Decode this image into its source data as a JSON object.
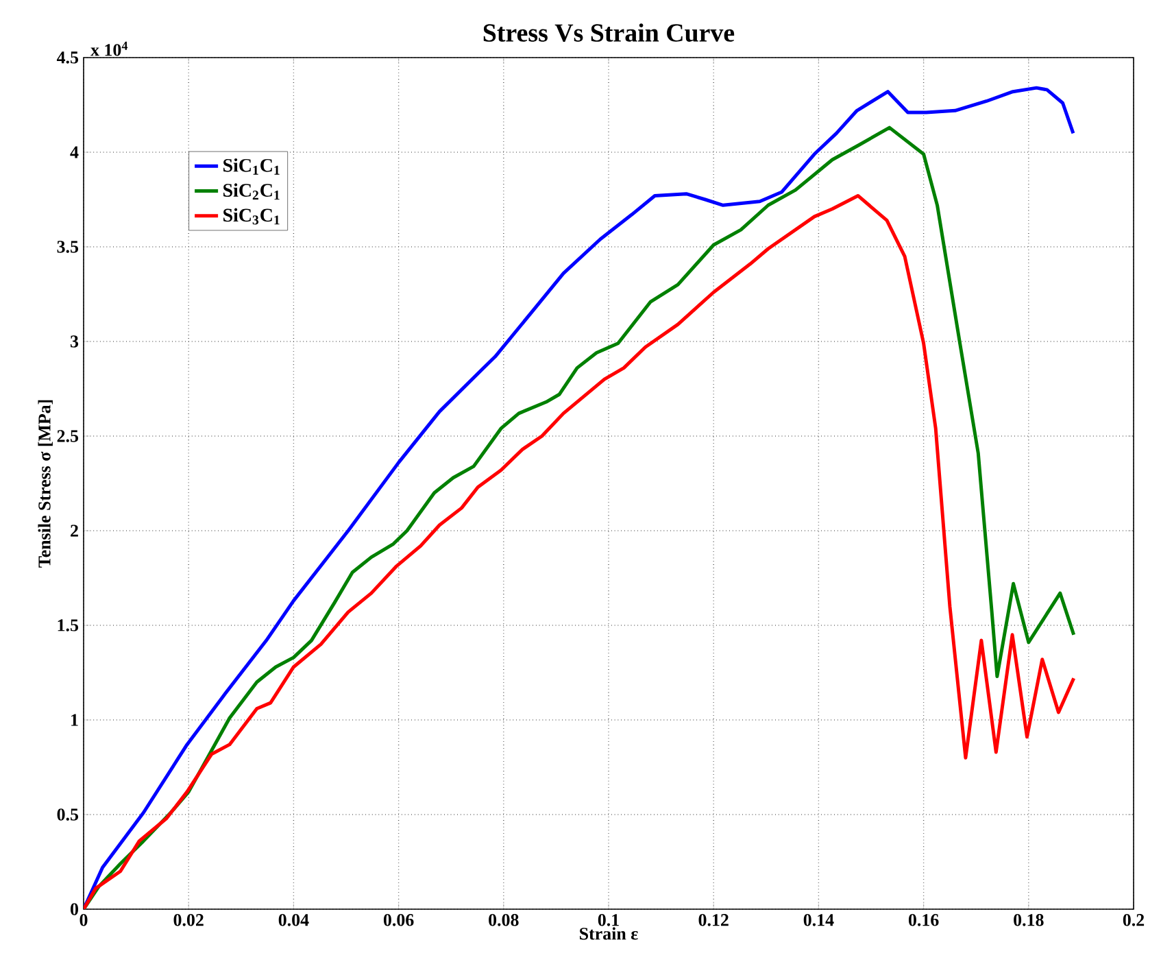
{
  "chart_data": {
    "type": "line",
    "title": "Stress Vs Strain Curve",
    "xlabel": "Strain ε",
    "ylabel": "Tensile Stress σ [MPa]",
    "annotations": [
      "x 10$^{4}$"
    ],
    "xlim": [
      0,
      0.2
    ],
    "ylim": [
      0,
      4.5
    ],
    "xticks": [
      0,
      0.02,
      0.04,
      0.06,
      0.08,
      0.1,
      0.12,
      0.14,
      0.16,
      0.18,
      0.2
    ],
    "yticks": [
      0,
      0.5,
      1,
      1.5,
      2,
      2.5,
      3,
      3.5,
      4,
      4.5
    ],
    "grid": true,
    "legend": "top left",
    "line_style": "solid",
    "series": [
      {
        "name": "SiC$_{1}$C$_{1}$",
        "color": "#0000ff",
        "x": [
          0,
          0.0036,
          0.0114,
          0.0197,
          0.027,
          0.0348,
          0.04,
          0.0504,
          0.06,
          0.0678,
          0.0758,
          0.0784,
          0.0855,
          0.0914,
          0.0984,
          0.1044,
          0.1088,
          0.1148,
          0.1184,
          0.1218,
          0.1288,
          0.133,
          0.1392,
          0.1434,
          0.1473,
          0.1532,
          0.157,
          0.1605,
          0.166,
          0.172,
          0.177,
          0.1815,
          0.1835,
          0.1865,
          0.1885
        ],
        "values": [
          0,
          0.22,
          0.51,
          0.87,
          1.14,
          1.42,
          1.63,
          2.0,
          2.36,
          2.63,
          2.85,
          2.92,
          3.16,
          3.36,
          3.54,
          3.67,
          3.77,
          3.78,
          3.75,
          3.72,
          3.74,
          3.79,
          3.99,
          4.1,
          4.22,
          4.32,
          4.21,
          4.21,
          4.22,
          4.27,
          4.32,
          4.34,
          4.33,
          4.26,
          4.1
        ]
      },
      {
        "name": "SiC$_{2}$C$_{1}$",
        "color": "#008000",
        "x": [
          0,
          0.0029,
          0.007,
          0.0114,
          0.0166,
          0.02,
          0.0236,
          0.0278,
          0.033,
          0.0366,
          0.04,
          0.0434,
          0.0478,
          0.0512,
          0.0548,
          0.059,
          0.0616,
          0.0668,
          0.0704,
          0.0743,
          0.0795,
          0.0829,
          0.0881,
          0.0906,
          0.094,
          0.0977,
          0.1018,
          0.108,
          0.1132,
          0.12,
          0.1252,
          0.1304,
          0.1356,
          0.1426,
          0.1478,
          0.1535,
          0.16,
          0.1626,
          0.1668,
          0.1704,
          0.173,
          0.174,
          0.1771,
          0.18,
          0.186,
          0.1886
        ],
        "values": [
          0,
          0.12,
          0.24,
          0.36,
          0.51,
          0.62,
          0.8,
          1.01,
          1.2,
          1.28,
          1.33,
          1.42,
          1.62,
          1.78,
          1.86,
          1.93,
          2.0,
          2.2,
          2.28,
          2.34,
          2.54,
          2.62,
          2.68,
          2.72,
          2.86,
          2.94,
          2.99,
          3.21,
          3.3,
          3.51,
          3.59,
          3.72,
          3.8,
          3.96,
          4.04,
          4.13,
          3.99,
          3.72,
          3.01,
          2.41,
          1.57,
          1.23,
          1.72,
          1.41,
          1.67,
          1.45
        ]
      },
      {
        "name": "SiC$_{3}$C$_{1}$",
        "color": "#ff0000",
        "x": [
          0,
          0.0023,
          0.007,
          0.0106,
          0.0158,
          0.0197,
          0.0244,
          0.0278,
          0.033,
          0.0356,
          0.04,
          0.0452,
          0.0504,
          0.0548,
          0.0595,
          0.0642,
          0.0678,
          0.072,
          0.0751,
          0.0795,
          0.0836,
          0.0873,
          0.0914,
          0.0992,
          0.1029,
          0.107,
          0.1132,
          0.12,
          0.127,
          0.1304,
          0.1392,
          0.1426,
          0.1475,
          0.153,
          0.1564,
          0.16,
          0.1623,
          0.165,
          0.168,
          0.171,
          0.1738,
          0.1769,
          0.1797,
          0.1826,
          0.1857,
          0.1886
        ],
        "values": [
          0,
          0.11,
          0.2,
          0.36,
          0.48,
          0.62,
          0.82,
          0.87,
          1.06,
          1.09,
          1.28,
          1.4,
          1.57,
          1.67,
          1.81,
          1.92,
          2.03,
          2.12,
          2.23,
          2.32,
          2.43,
          2.5,
          2.62,
          2.8,
          2.86,
          2.97,
          3.09,
          3.26,
          3.41,
          3.49,
          3.66,
          3.7,
          3.77,
          3.64,
          3.45,
          2.99,
          2.54,
          1.6,
          0.8,
          1.42,
          0.83,
          1.45,
          0.91,
          1.32,
          1.04,
          1.22
        ]
      }
    ]
  }
}
